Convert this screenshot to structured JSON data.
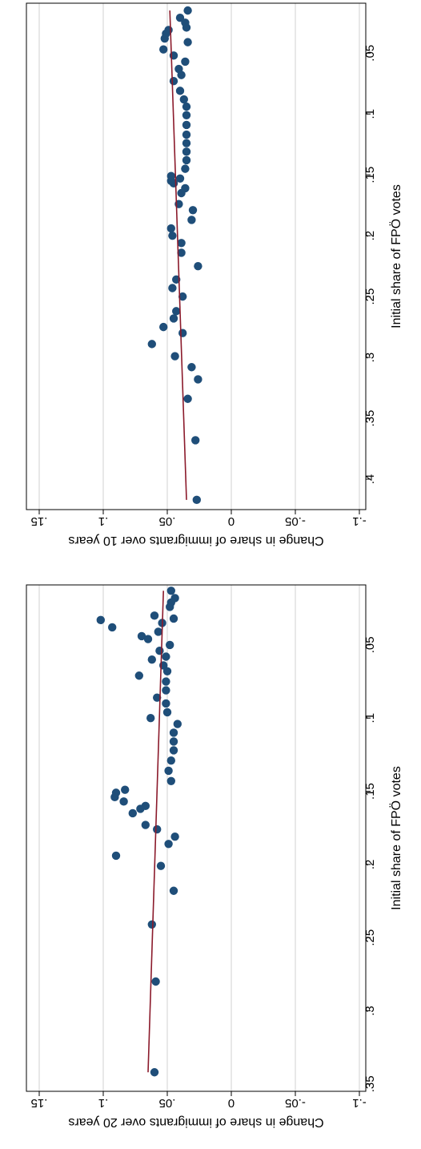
{
  "chart_data": [
    {
      "type": "scatter",
      "title": "",
      "xlabel": "Initial share of FPÖ votes",
      "ylabel": "Change in share of immigrants over 10 years",
      "xlim": [
        0.009,
        0.425
      ],
      "ylim": [
        -0.105,
        0.16
      ],
      "xticks": [
        {
          "value": 0.05,
          "label": ".05"
        },
        {
          "value": 0.1,
          "label": ".1"
        },
        {
          "value": 0.15,
          "label": ".15"
        },
        {
          "value": 0.2,
          "label": ".2"
        },
        {
          "value": 0.25,
          "label": ".25"
        },
        {
          "value": 0.3,
          "label": ".3"
        },
        {
          "value": 0.35,
          "label": ".35"
        },
        {
          "value": 0.4,
          "label": ".4"
        }
      ],
      "yticks": [
        {
          "value": -0.1,
          "label": "-.1"
        },
        {
          "value": -0.05,
          "label": "-.05"
        },
        {
          "value": 0,
          "label": "0"
        },
        {
          "value": 0.05,
          "label": ".05"
        },
        {
          "value": 0.1,
          "label": ".1"
        },
        {
          "value": 0.15,
          "label": ".15"
        }
      ],
      "grid": true,
      "marker_color": "#1f4e79",
      "fit_color": "#8b1a2b",
      "points": [
        {
          "x": 0.015,
          "y": 0.034
        },
        {
          "x": 0.021,
          "y": 0.04
        },
        {
          "x": 0.025,
          "y": 0.036
        },
        {
          "x": 0.029,
          "y": 0.035
        },
        {
          "x": 0.031,
          "y": 0.049
        },
        {
          "x": 0.034,
          "y": 0.051
        },
        {
          "x": 0.038,
          "y": 0.052
        },
        {
          "x": 0.041,
          "y": 0.034
        },
        {
          "x": 0.047,
          "y": 0.053
        },
        {
          "x": 0.052,
          "y": 0.045
        },
        {
          "x": 0.057,
          "y": 0.036
        },
        {
          "x": 0.063,
          "y": 0.041
        },
        {
          "x": 0.068,
          "y": 0.039
        },
        {
          "x": 0.073,
          "y": 0.045
        },
        {
          "x": 0.081,
          "y": 0.04
        },
        {
          "x": 0.088,
          "y": 0.037
        },
        {
          "x": 0.094,
          "y": 0.035
        },
        {
          "x": 0.101,
          "y": 0.035
        },
        {
          "x": 0.109,
          "y": 0.035
        },
        {
          "x": 0.117,
          "y": 0.035
        },
        {
          "x": 0.124,
          "y": 0.035
        },
        {
          "x": 0.131,
          "y": 0.035
        },
        {
          "x": 0.138,
          "y": 0.035
        },
        {
          "x": 0.145,
          "y": 0.036
        },
        {
          "x": 0.151,
          "y": 0.047
        },
        {
          "x": 0.153,
          "y": 0.04
        },
        {
          "x": 0.155,
          "y": 0.047
        },
        {
          "x": 0.157,
          "y": 0.045
        },
        {
          "x": 0.161,
          "y": 0.036
        },
        {
          "x": 0.165,
          "y": 0.039
        },
        {
          "x": 0.174,
          "y": 0.041
        },
        {
          "x": 0.179,
          "y": 0.03
        },
        {
          "x": 0.187,
          "y": 0.031
        },
        {
          "x": 0.194,
          "y": 0.047
        },
        {
          "x": 0.2,
          "y": 0.046
        },
        {
          "x": 0.206,
          "y": 0.039
        },
        {
          "x": 0.214,
          "y": 0.039
        },
        {
          "x": 0.225,
          "y": 0.026
        },
        {
          "x": 0.236,
          "y": 0.043
        },
        {
          "x": 0.243,
          "y": 0.046
        },
        {
          "x": 0.25,
          "y": 0.038
        },
        {
          "x": 0.262,
          "y": 0.043
        },
        {
          "x": 0.268,
          "y": 0.045
        },
        {
          "x": 0.275,
          "y": 0.053
        },
        {
          "x": 0.28,
          "y": 0.038
        },
        {
          "x": 0.289,
          "y": 0.062
        },
        {
          "x": 0.299,
          "y": 0.044
        },
        {
          "x": 0.308,
          "y": 0.031
        },
        {
          "x": 0.318,
          "y": 0.026
        },
        {
          "x": 0.334,
          "y": 0.034
        },
        {
          "x": 0.368,
          "y": 0.028
        },
        {
          "x": 0.417,
          "y": 0.027
        }
      ],
      "fit": {
        "x": [
          0.015,
          0.417
        ],
        "y": [
          0.048,
          0.035
        ]
      }
    },
    {
      "type": "scatter",
      "title": "",
      "xlabel": "Initial share of FPÖ votes",
      "ylabel": "Change in share of immigrants over 20 years",
      "xlim": [
        0.009,
        0.355
      ],
      "ylim": [
        -0.105,
        0.16
      ],
      "xticks": [
        {
          "value": 0.05,
          "label": ".05"
        },
        {
          "value": 0.1,
          "label": ".1"
        },
        {
          "value": 0.15,
          "label": ".15"
        },
        {
          "value": 0.2,
          "label": ".2"
        },
        {
          "value": 0.25,
          "label": ".25"
        },
        {
          "value": 0.3,
          "label": ".3"
        },
        {
          "value": 0.35,
          "label": ".35"
        }
      ],
      "yticks": [
        {
          "value": -0.1,
          "label": "-.1"
        },
        {
          "value": -0.05,
          "label": "-.05"
        },
        {
          "value": 0,
          "label": "0"
        },
        {
          "value": 0.05,
          "label": ".05"
        },
        {
          "value": 0.1,
          "label": ".1"
        },
        {
          "value": 0.15,
          "label": ".15"
        }
      ],
      "grid": true,
      "marker_color": "#1f4e79",
      "fit_color": "#8b1a2b",
      "points": [
        {
          "x": 0.013,
          "y": 0.047
        },
        {
          "x": 0.018,
          "y": 0.044
        },
        {
          "x": 0.021,
          "y": 0.047
        },
        {
          "x": 0.024,
          "y": 0.048
        },
        {
          "x": 0.03,
          "y": 0.06
        },
        {
          "x": 0.032,
          "y": 0.045
        },
        {
          "x": 0.033,
          "y": 0.102
        },
        {
          "x": 0.035,
          "y": 0.054
        },
        {
          "x": 0.038,
          "y": 0.093
        },
        {
          "x": 0.041,
          "y": 0.057
        },
        {
          "x": 0.044,
          "y": 0.07
        },
        {
          "x": 0.046,
          "y": 0.065
        },
        {
          "x": 0.05,
          "y": 0.048
        },
        {
          "x": 0.054,
          "y": 0.056
        },
        {
          "x": 0.058,
          "y": 0.051
        },
        {
          "x": 0.06,
          "y": 0.062
        },
        {
          "x": 0.064,
          "y": 0.053
        },
        {
          "x": 0.068,
          "y": 0.05
        },
        {
          "x": 0.071,
          "y": 0.072
        },
        {
          "x": 0.075,
          "y": 0.051
        },
        {
          "x": 0.081,
          "y": 0.051
        },
        {
          "x": 0.086,
          "y": 0.058
        },
        {
          "x": 0.09,
          "y": 0.051
        },
        {
          "x": 0.096,
          "y": 0.05
        },
        {
          "x": 0.1,
          "y": 0.063
        },
        {
          "x": 0.104,
          "y": 0.042
        },
        {
          "x": 0.11,
          "y": 0.045
        },
        {
          "x": 0.116,
          "y": 0.045
        },
        {
          "x": 0.122,
          "y": 0.045
        },
        {
          "x": 0.129,
          "y": 0.047
        },
        {
          "x": 0.136,
          "y": 0.049
        },
        {
          "x": 0.143,
          "y": 0.047
        },
        {
          "x": 0.149,
          "y": 0.083
        },
        {
          "x": 0.151,
          "y": 0.09
        },
        {
          "x": 0.154,
          "y": 0.091
        },
        {
          "x": 0.157,
          "y": 0.084
        },
        {
          "x": 0.16,
          "y": 0.067
        },
        {
          "x": 0.162,
          "y": 0.071
        },
        {
          "x": 0.165,
          "y": 0.077
        },
        {
          "x": 0.173,
          "y": 0.067
        },
        {
          "x": 0.176,
          "y": 0.058
        },
        {
          "x": 0.181,
          "y": 0.044
        },
        {
          "x": 0.186,
          "y": 0.049
        },
        {
          "x": 0.194,
          "y": 0.09
        },
        {
          "x": 0.201,
          "y": 0.055
        },
        {
          "x": 0.218,
          "y": 0.045
        },
        {
          "x": 0.241,
          "y": 0.062
        },
        {
          "x": 0.28,
          "y": 0.059
        },
        {
          "x": 0.342,
          "y": 0.06
        }
      ],
      "fit": {
        "x": [
          0.013,
          0.342
        ],
        "y": [
          0.053,
          0.065
        ]
      }
    }
  ]
}
